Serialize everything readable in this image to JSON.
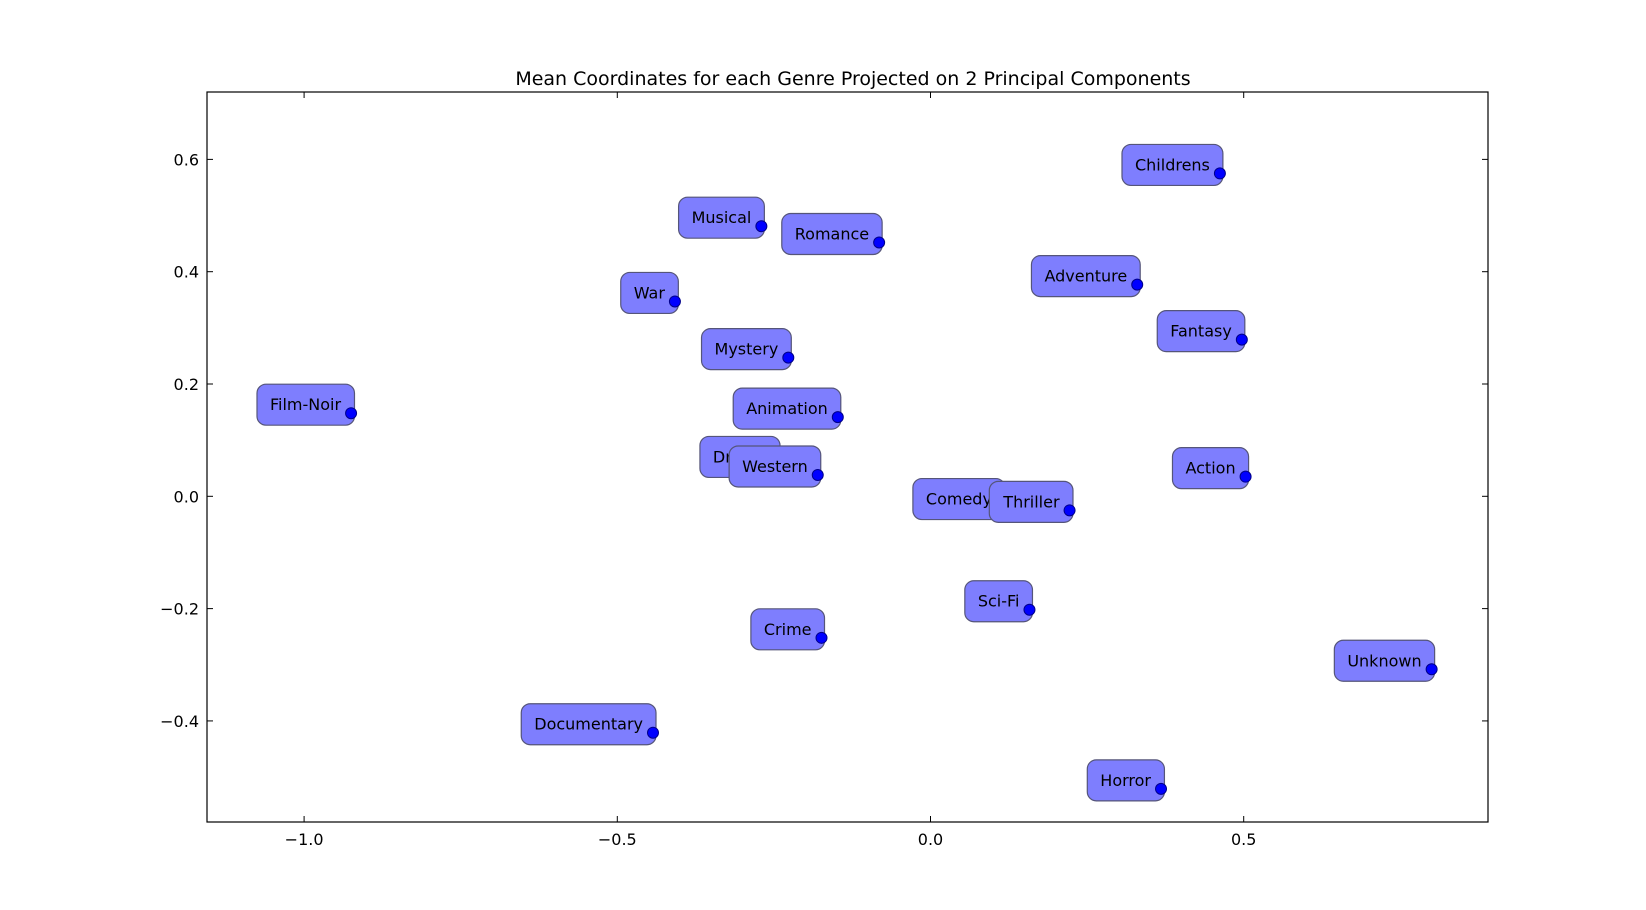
{
  "chart_data": {
    "type": "scatter",
    "title": "Mean Coordinates for each Genre Projected on 2 Principal Components",
    "xlabel": "",
    "ylabel": "",
    "xlim": [
      -1.155,
      0.89
    ],
    "ylim": [
      -0.58,
      0.72
    ],
    "xticks": [
      -1.0,
      -0.5,
      0.0,
      0.5
    ],
    "xtick_labels": [
      "−1.0",
      "−0.5",
      "0.0",
      "0.5"
    ],
    "yticks": [
      -0.4,
      -0.2,
      0.0,
      0.2,
      0.4,
      0.6
    ],
    "ytick_labels": [
      "−0.4",
      "−0.2",
      "0.0",
      "0.2",
      "0.4",
      "0.6"
    ],
    "grid": false,
    "marker_color": "#0000ff",
    "label_box_color": "#7e7efe",
    "points": [
      {
        "label": "Childrens",
        "x": 0.462,
        "y": 0.575
      },
      {
        "label": "Musical",
        "x": -0.27,
        "y": 0.481
      },
      {
        "label": "Romance",
        "x": -0.082,
        "y": 0.452
      },
      {
        "label": "Adventure",
        "x": 0.33,
        "y": 0.377
      },
      {
        "label": "War",
        "x": -0.408,
        "y": 0.347
      },
      {
        "label": "Fantasy",
        "x": 0.497,
        "y": 0.279
      },
      {
        "label": "Mystery",
        "x": -0.227,
        "y": 0.247
      },
      {
        "label": "Film-Noir",
        "x": -0.925,
        "y": 0.148
      },
      {
        "label": "Animation",
        "x": -0.148,
        "y": 0.141
      },
      {
        "label": "Drama",
        "x": -0.245,
        "y": 0.055
      },
      {
        "label": "Western",
        "x": -0.18,
        "y": 0.038
      },
      {
        "label": "Action",
        "x": 0.503,
        "y": 0.035
      },
      {
        "label": "Comedy",
        "x": 0.114,
        "y": -0.02
      },
      {
        "label": "Thriller",
        "x": 0.222,
        "y": -0.025
      },
      {
        "label": "Sci-Fi",
        "x": 0.158,
        "y": -0.202
      },
      {
        "label": "Crime",
        "x": -0.174,
        "y": -0.252
      },
      {
        "label": "Unknown",
        "x": 0.8,
        "y": -0.308
      },
      {
        "label": "Documentary",
        "x": -0.443,
        "y": -0.421
      },
      {
        "label": "Horror",
        "x": 0.368,
        "y": -0.521
      }
    ]
  }
}
